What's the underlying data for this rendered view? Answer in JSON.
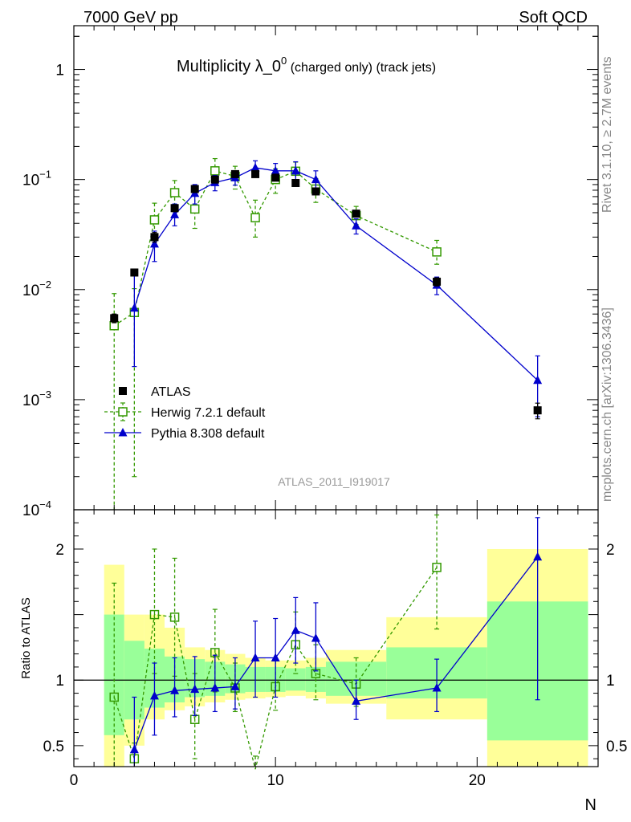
{
  "header": {
    "left": "7000 GeV pp",
    "right": "Soft QCD"
  },
  "side_text": {
    "rivet": "Rivet 3.1.10, ≥ 2.7M events",
    "site": "mcplots.cern.ch [arXiv:1306.3436]"
  },
  "chart_data": [
    {
      "type": "scatter",
      "title_main": "Multiplicity λ_0",
      "title_sup": "0",
      "title_rest": " (charged only) (track jets)",
      "analysis_id": "ATLAS_2011_I919017",
      "ylog": true,
      "xlim": [
        0,
        26
      ],
      "ylim": [
        0.0001,
        2.5
      ],
      "x_ticks": [
        "0",
        "10",
        "20"
      ],
      "y_ticks": [
        {
          "value": 1,
          "base": "1",
          "exp": ""
        },
        {
          "value": 0.1,
          "base": "10",
          "exp": "−1"
        },
        {
          "value": 0.01,
          "base": "10",
          "exp": "−2"
        },
        {
          "value": 0.001,
          "base": "10",
          "exp": "−3"
        },
        {
          "value": 0.0001,
          "base": "10",
          "exp": "−4"
        }
      ],
      "legend": [
        {
          "label": "ATLAS",
          "color": "#000000",
          "marker": "square-filled"
        },
        {
          "label": "Herwig 7.2.1 default",
          "color": "#339900",
          "marker": "square-open"
        },
        {
          "label": "Pythia 8.308 default",
          "color": "#0000cc",
          "marker": "triangle-filled"
        }
      ],
      "series": [
        {
          "name": "ATLAS",
          "color": "#000000",
          "x": [
            2,
            3,
            4,
            5,
            6,
            7,
            8,
            9,
            10,
            11,
            12,
            14,
            18,
            23
          ],
          "y": [
            0.0055,
            0.0143,
            0.03,
            0.055,
            0.082,
            0.1,
            0.112,
            0.112,
            0.104,
            0.093,
            0.078,
            0.049,
            0.0118,
            0.0008
          ],
          "err_low": [
            0.0005,
            0.0005,
            0.003,
            0.004,
            0.004,
            0.005,
            0.005,
            0.005,
            0.005,
            0.005,
            0.004,
            0.003,
            0.001,
            0.00013
          ],
          "err_high": [
            0.0005,
            0.0005,
            0.003,
            0.004,
            0.004,
            0.005,
            0.005,
            0.005,
            0.005,
            0.005,
            0.004,
            0.003,
            0.001,
            0.00013
          ]
        },
        {
          "name": "Herwig 7.2.1 default",
          "color": "#339900",
          "x": [
            2,
            3,
            4,
            5,
            6,
            7,
            8,
            9,
            10,
            11,
            12,
            14,
            18
          ],
          "y": [
            0.0047,
            0.0062,
            0.043,
            0.076,
            0.054,
            0.12,
            0.107,
            0.045,
            0.1,
            0.119,
            0.082,
            0.047,
            0.022
          ],
          "err_low": [
            0.0046,
            0.006,
            0.015,
            0.02,
            0.018,
            0.03,
            0.025,
            0.015,
            0.025,
            0.025,
            0.02,
            0.008,
            0.005
          ],
          "err_high": [
            0.0045,
            0.004,
            0.018,
            0.022,
            0.02,
            0.035,
            0.025,
            0.02,
            0.025,
            0.025,
            0.02,
            0.01,
            0.006
          ]
        },
        {
          "name": "Pythia 8.308 default",
          "color": "#0000cc",
          "x": [
            3,
            4,
            5,
            6,
            7,
            8,
            9,
            10,
            11,
            12,
            14,
            18,
            23
          ],
          "y": [
            0.0068,
            0.026,
            0.048,
            0.075,
            0.094,
            0.104,
            0.128,
            0.12,
            0.12,
            0.1,
            0.038,
            0.011,
            0.0015
          ],
          "err_low": [
            0.0048,
            0.008,
            0.01,
            0.015,
            0.015,
            0.015,
            0.02,
            0.02,
            0.02,
            0.02,
            0.006,
            0.002,
            0.0008
          ],
          "err_high": [
            0.007,
            0.008,
            0.012,
            0.015,
            0.015,
            0.015,
            0.02,
            0.02,
            0.025,
            0.02,
            0.006,
            0.002,
            0.001
          ]
        }
      ]
    },
    {
      "type": "scatter",
      "ylabel": "Ratio to ATLAS",
      "xlabel": "N",
      "xlim": [
        0,
        26
      ],
      "ylim": [
        0.34,
        2.3
      ],
      "x_ticks": [
        "0",
        "10",
        "20"
      ],
      "y_ticks": [
        {
          "value": 2,
          "label": "2"
        },
        {
          "value": 1,
          "label": "1"
        },
        {
          "value": 0.5,
          "label": "0.5"
        }
      ],
      "bands": [
        {
          "x0": 1.5,
          "x1": 2.5,
          "yellow": [
            0.34,
            1.88
          ],
          "green": [
            0.58,
            1.5
          ]
        },
        {
          "x0": 2.5,
          "x1": 3.5,
          "yellow": [
            0.5,
            1.5
          ],
          "green": [
            0.7,
            1.3
          ]
        },
        {
          "x0": 3.5,
          "x1": 4.5,
          "yellow": [
            0.7,
            1.5
          ],
          "green": [
            0.79,
            1.24
          ]
        },
        {
          "x0": 4.5,
          "x1": 5.5,
          "yellow": [
            0.77,
            1.4
          ],
          "green": [
            0.83,
            1.18
          ]
        },
        {
          "x0": 5.5,
          "x1": 6.5,
          "yellow": [
            0.8,
            1.25
          ],
          "green": [
            0.87,
            1.16
          ]
        },
        {
          "x0": 6.5,
          "x1": 7.5,
          "yellow": [
            0.83,
            1.23
          ],
          "green": [
            0.88,
            1.14
          ]
        },
        {
          "x0": 7.5,
          "x1": 8.5,
          "yellow": [
            0.85,
            1.2
          ],
          "green": [
            0.9,
            1.12
          ]
        },
        {
          "x0": 8.5,
          "x1": 9.5,
          "yellow": [
            0.86,
            1.17
          ],
          "green": [
            0.91,
            1.1
          ]
        },
        {
          "x0": 9.5,
          "x1": 10.5,
          "yellow": [
            0.87,
            1.15
          ],
          "green": [
            0.91,
            1.1
          ]
        },
        {
          "x0": 10.5,
          "x1": 11.5,
          "yellow": [
            0.88,
            1.15
          ],
          "green": [
            0.92,
            1.09
          ]
        },
        {
          "x0": 11.5,
          "x1": 12.5,
          "yellow": [
            0.86,
            1.17
          ],
          "green": [
            0.91,
            1.1
          ]
        },
        {
          "x0": 12.5,
          "x1": 15.5,
          "yellow": [
            0.82,
            1.23
          ],
          "green": [
            0.88,
            1.14
          ]
        },
        {
          "x0": 15.5,
          "x1": 20.5,
          "yellow": [
            0.7,
            1.48
          ],
          "green": [
            0.86,
            1.25
          ]
        },
        {
          "x0": 20.5,
          "x1": 25.5,
          "yellow": [
            0.34,
            2.0
          ],
          "green": [
            0.54,
            1.6
          ]
        }
      ],
      "series": [
        {
          "name": "Herwig 7.2.1 default",
          "color": "#339900",
          "x": [
            2,
            3,
            4,
            5,
            6,
            7,
            8,
            9,
            10,
            11,
            12,
            14,
            18
          ],
          "y": [
            0.87,
            0.4,
            1.5,
            1.48,
            0.7,
            1.21,
            0.94,
            0.32,
            0.95,
            1.27,
            1.05,
            0.97,
            1.86
          ],
          "err_low": [
            0.55,
            0.06,
            0.45,
            0.45,
            0.3,
            0.3,
            0.18,
            0.1,
            0.18,
            0.22,
            0.2,
            0.17,
            0.47
          ],
          "err_high": [
            0.87,
            0.12,
            0.5,
            0.45,
            0.35,
            0.33,
            0.19,
            0.1,
            0.2,
            0.25,
            0.22,
            0.2,
            0.4
          ]
        },
        {
          "name": "Pythia 8.308 default",
          "color": "#0000cc",
          "x": [
            3,
            4,
            5,
            6,
            7,
            8,
            9,
            10,
            11,
            12,
            14,
            18,
            23
          ],
          "y": [
            0.47,
            0.88,
            0.92,
            0.93,
            0.94,
            0.95,
            1.17,
            1.17,
            1.38,
            1.32,
            0.84,
            0.94,
            1.94
          ],
          "err_low": [
            0.13,
            0.3,
            0.2,
            0.2,
            0.18,
            0.17,
            0.3,
            0.3,
            0.25,
            0.25,
            0.14,
            0.18,
            1.09
          ],
          "err_high": [
            0.4,
            0.25,
            0.25,
            0.25,
            0.25,
            0.22,
            0.28,
            0.3,
            0.25,
            0.27,
            0.16,
            0.22,
            0.3
          ]
        }
      ]
    }
  ]
}
